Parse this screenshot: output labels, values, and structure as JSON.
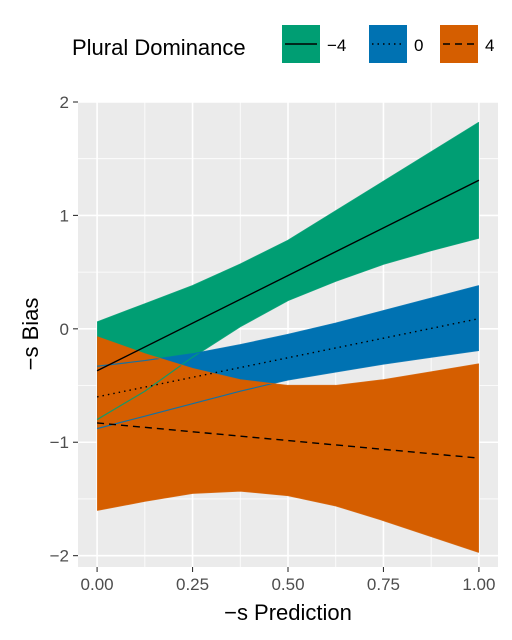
{
  "chart_data": {
    "type": "line",
    "xlabel": "−s Prediction",
    "ylabel": "−s Bias",
    "xlim": [
      -0.05,
      1.05
    ],
    "ylim": [
      -2.1,
      2.0
    ],
    "x_ticks": [
      0.0,
      0.25,
      0.5,
      0.75,
      1.0
    ],
    "x_tick_labels": [
      "0.00",
      "0.25",
      "0.50",
      "0.75",
      "1.00"
    ],
    "y_ticks": [
      -2,
      -1,
      0,
      1,
      2
    ],
    "y_tick_labels": [
      "−2",
      "−1",
      "0",
      "1",
      "2"
    ],
    "grid": true,
    "legend": {
      "title": "Plural Dominance",
      "position": "top",
      "entries": [
        {
          "label": "−4",
          "fill": "#009E73",
          "linestyle": "solid"
        },
        {
          "label": "0",
          "fill": "#0072B2",
          "linestyle": "dotted"
        },
        {
          "label": "4",
          "fill": "#D55E00",
          "linestyle": "dashed"
        }
      ]
    },
    "series": [
      {
        "name": "−4",
        "color": "#009E73",
        "linestyle": "solid",
        "x": [
          0.0,
          1.0
        ],
        "y": [
          -0.37,
          1.31
        ],
        "ribbon_x": [
          0.0,
          0.125,
          0.25,
          0.375,
          0.5,
          0.625,
          0.75,
          0.875,
          1.0
        ],
        "ribbon_lower": [
          -0.8,
          -0.55,
          -0.25,
          0.02,
          0.25,
          0.42,
          0.57,
          0.69,
          0.8
        ],
        "ribbon_upper": [
          0.06,
          0.22,
          0.38,
          0.57,
          0.78,
          1.04,
          1.3,
          1.56,
          1.82
        ]
      },
      {
        "name": "0",
        "color": "#0072B2",
        "linestyle": "dotted",
        "x": [
          0.0,
          1.0
        ],
        "y": [
          -0.6,
          0.09
        ],
        "ribbon_x": [
          0.0,
          0.125,
          0.25,
          0.375,
          0.5,
          0.625,
          0.75,
          0.875,
          1.0
        ],
        "ribbon_lower": [
          -0.88,
          -0.77,
          -0.66,
          -0.55,
          -0.45,
          -0.38,
          -0.31,
          -0.25,
          -0.19
        ],
        "ribbon_upper": [
          -0.33,
          -0.28,
          -0.22,
          -0.14,
          -0.05,
          0.05,
          0.16,
          0.27,
          0.38
        ]
      },
      {
        "name": "4",
        "color": "#D55E00",
        "linestyle": "dashed",
        "x": [
          0.0,
          1.0
        ],
        "y": [
          -0.83,
          -1.14
        ],
        "ribbon_x": [
          0.0,
          0.125,
          0.25,
          0.375,
          0.5,
          0.625,
          0.75,
          0.875,
          1.0
        ],
        "ribbon_lower": [
          -1.6,
          -1.52,
          -1.45,
          -1.43,
          -1.47,
          -1.56,
          -1.69,
          -1.83,
          -1.97
        ],
        "ribbon_upper": [
          -0.07,
          -0.22,
          -0.35,
          -0.45,
          -0.5,
          -0.5,
          -0.45,
          -0.38,
          -0.31
        ]
      }
    ]
  }
}
